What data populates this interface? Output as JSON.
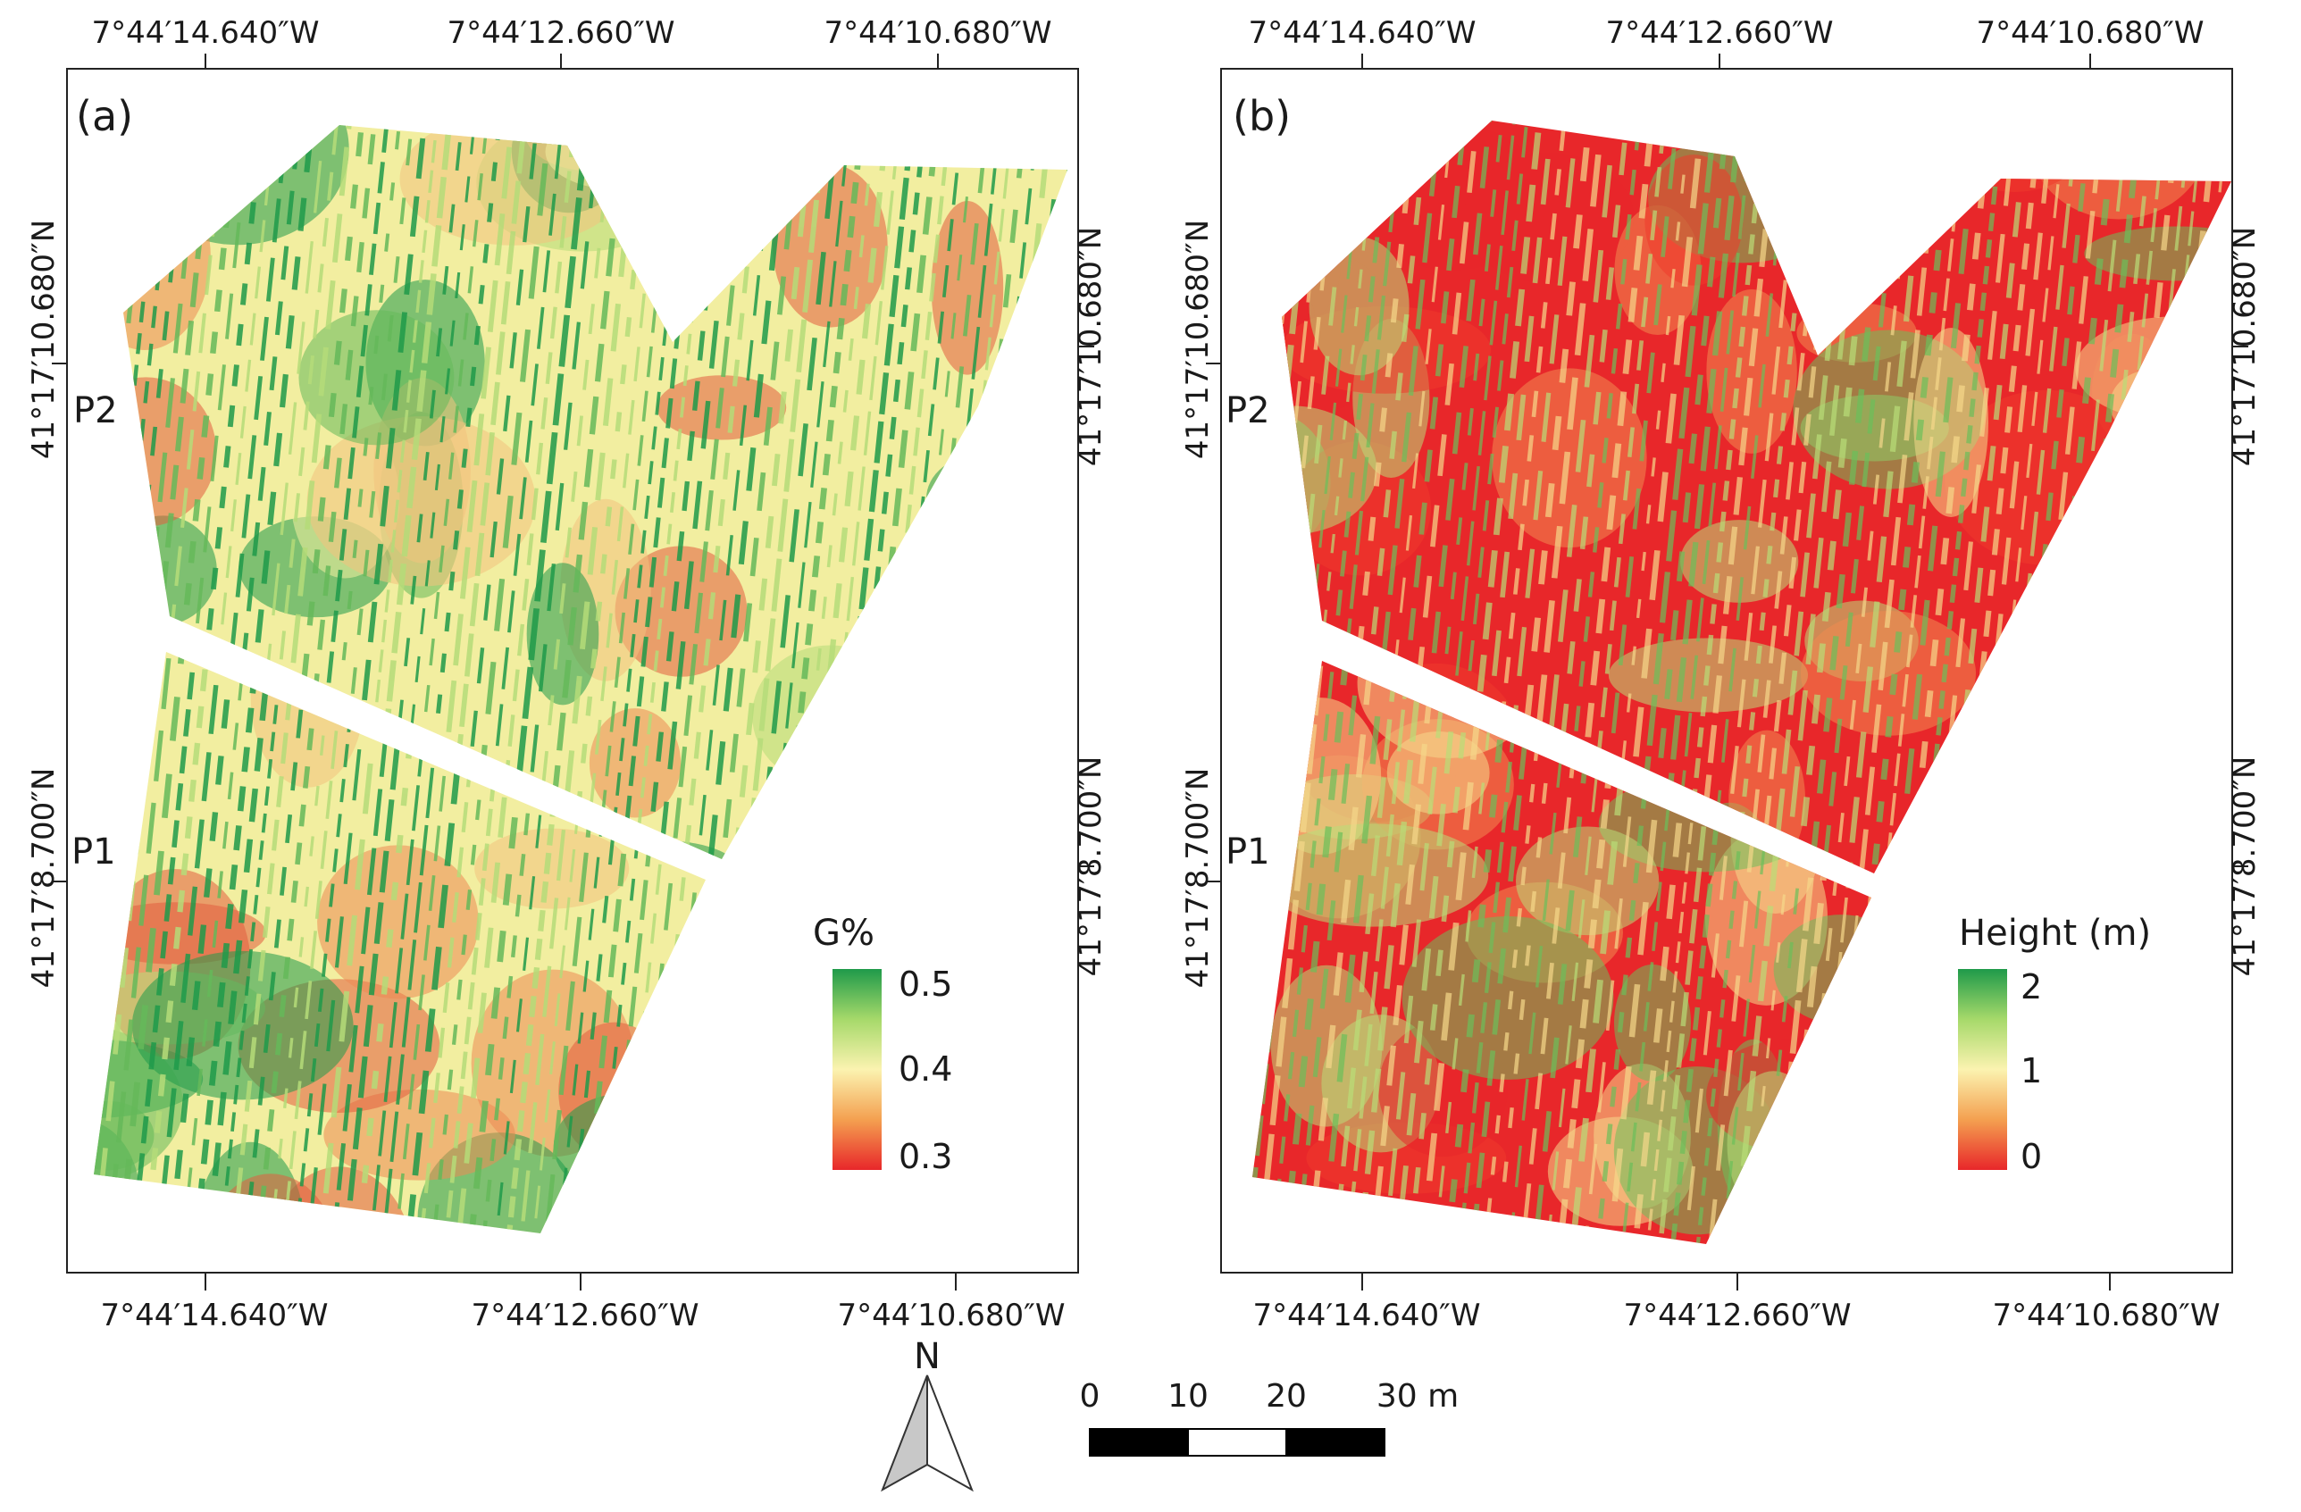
{
  "panels": [
    {
      "id": "a",
      "label": "(a)",
      "lon_top": [
        "7°44′14.640″W",
        "7°44′12.660″W",
        "7°44′10.680″W"
      ],
      "lon_bottom": [
        "7°44′14.640″W",
        "7°44′12.660″W",
        "7°44′10.680″W"
      ],
      "lat_left": [
        "41°17′10.680″N",
        "41°17′8.700″N"
      ],
      "lat_right": [
        "41°17′10.680″N",
        "41°17′8.700″N"
      ],
      "plot_labels": [
        "P2",
        "P1"
      ],
      "legend": {
        "title": "G%",
        "ticks": [
          "0.5",
          "0.4",
          "0.3"
        ],
        "colors": [
          "#1f9a4a",
          "#a6d96a",
          "#fbf3b0",
          "#f4a050",
          "#e8272a"
        ]
      },
      "field_colors": [
        "#1f9a4a",
        "#65b95a",
        "#b5dc79",
        "#f2eea0",
        "#f3c37e",
        "#ec8a54",
        "#e25c3e"
      ]
    },
    {
      "id": "b",
      "label": "(b)",
      "lon_top": [
        "7°44′14.640″W",
        "7°44′12.660″W",
        "7°44′10.680″W"
      ],
      "lon_bottom": [
        "7°44′14.640″W",
        "7°44′12.660″W",
        "7°44′10.680″W"
      ],
      "lat_left": [
        "41°17′10.680″N",
        "41°17′8.700″N"
      ],
      "lat_right": [
        "41°17′10.680″N",
        "41°17′8.700″N"
      ],
      "plot_labels": [
        "P2",
        "P1"
      ],
      "legend": {
        "title": "Height (m)",
        "ticks": [
          "2",
          "1",
          "0"
        ],
        "colors": [
          "#1f9a4a",
          "#a6d96a",
          "#fbf3b0",
          "#f4a050",
          "#e8272a"
        ]
      },
      "field_colors": [
        "#e8272a",
        "#ef3b2c",
        "#f08b50",
        "#f6d88a",
        "#b9dd78",
        "#6cbf5a"
      ]
    }
  ],
  "north_arrow": {
    "label": "N"
  },
  "scale_bar": {
    "labels": [
      "0",
      "10",
      "20",
      "30 m"
    ]
  }
}
